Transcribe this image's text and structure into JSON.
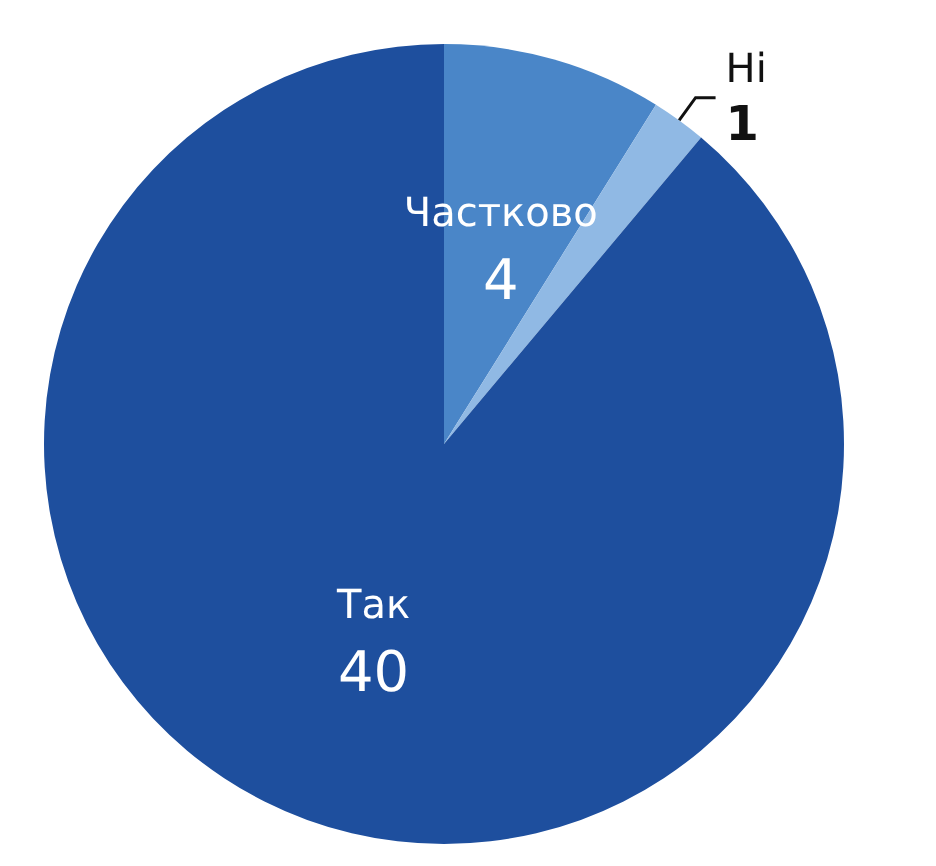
{
  "chart_data": {
    "type": "pie",
    "categories": [
      "Частково",
      "Ні",
      "Так"
    ],
    "values": [
      4,
      1,
      40
    ],
    "colors": [
      "#4a86c8",
      "#90b9e4",
      "#1e4f9e"
    ],
    "data_labels": true
  }
}
